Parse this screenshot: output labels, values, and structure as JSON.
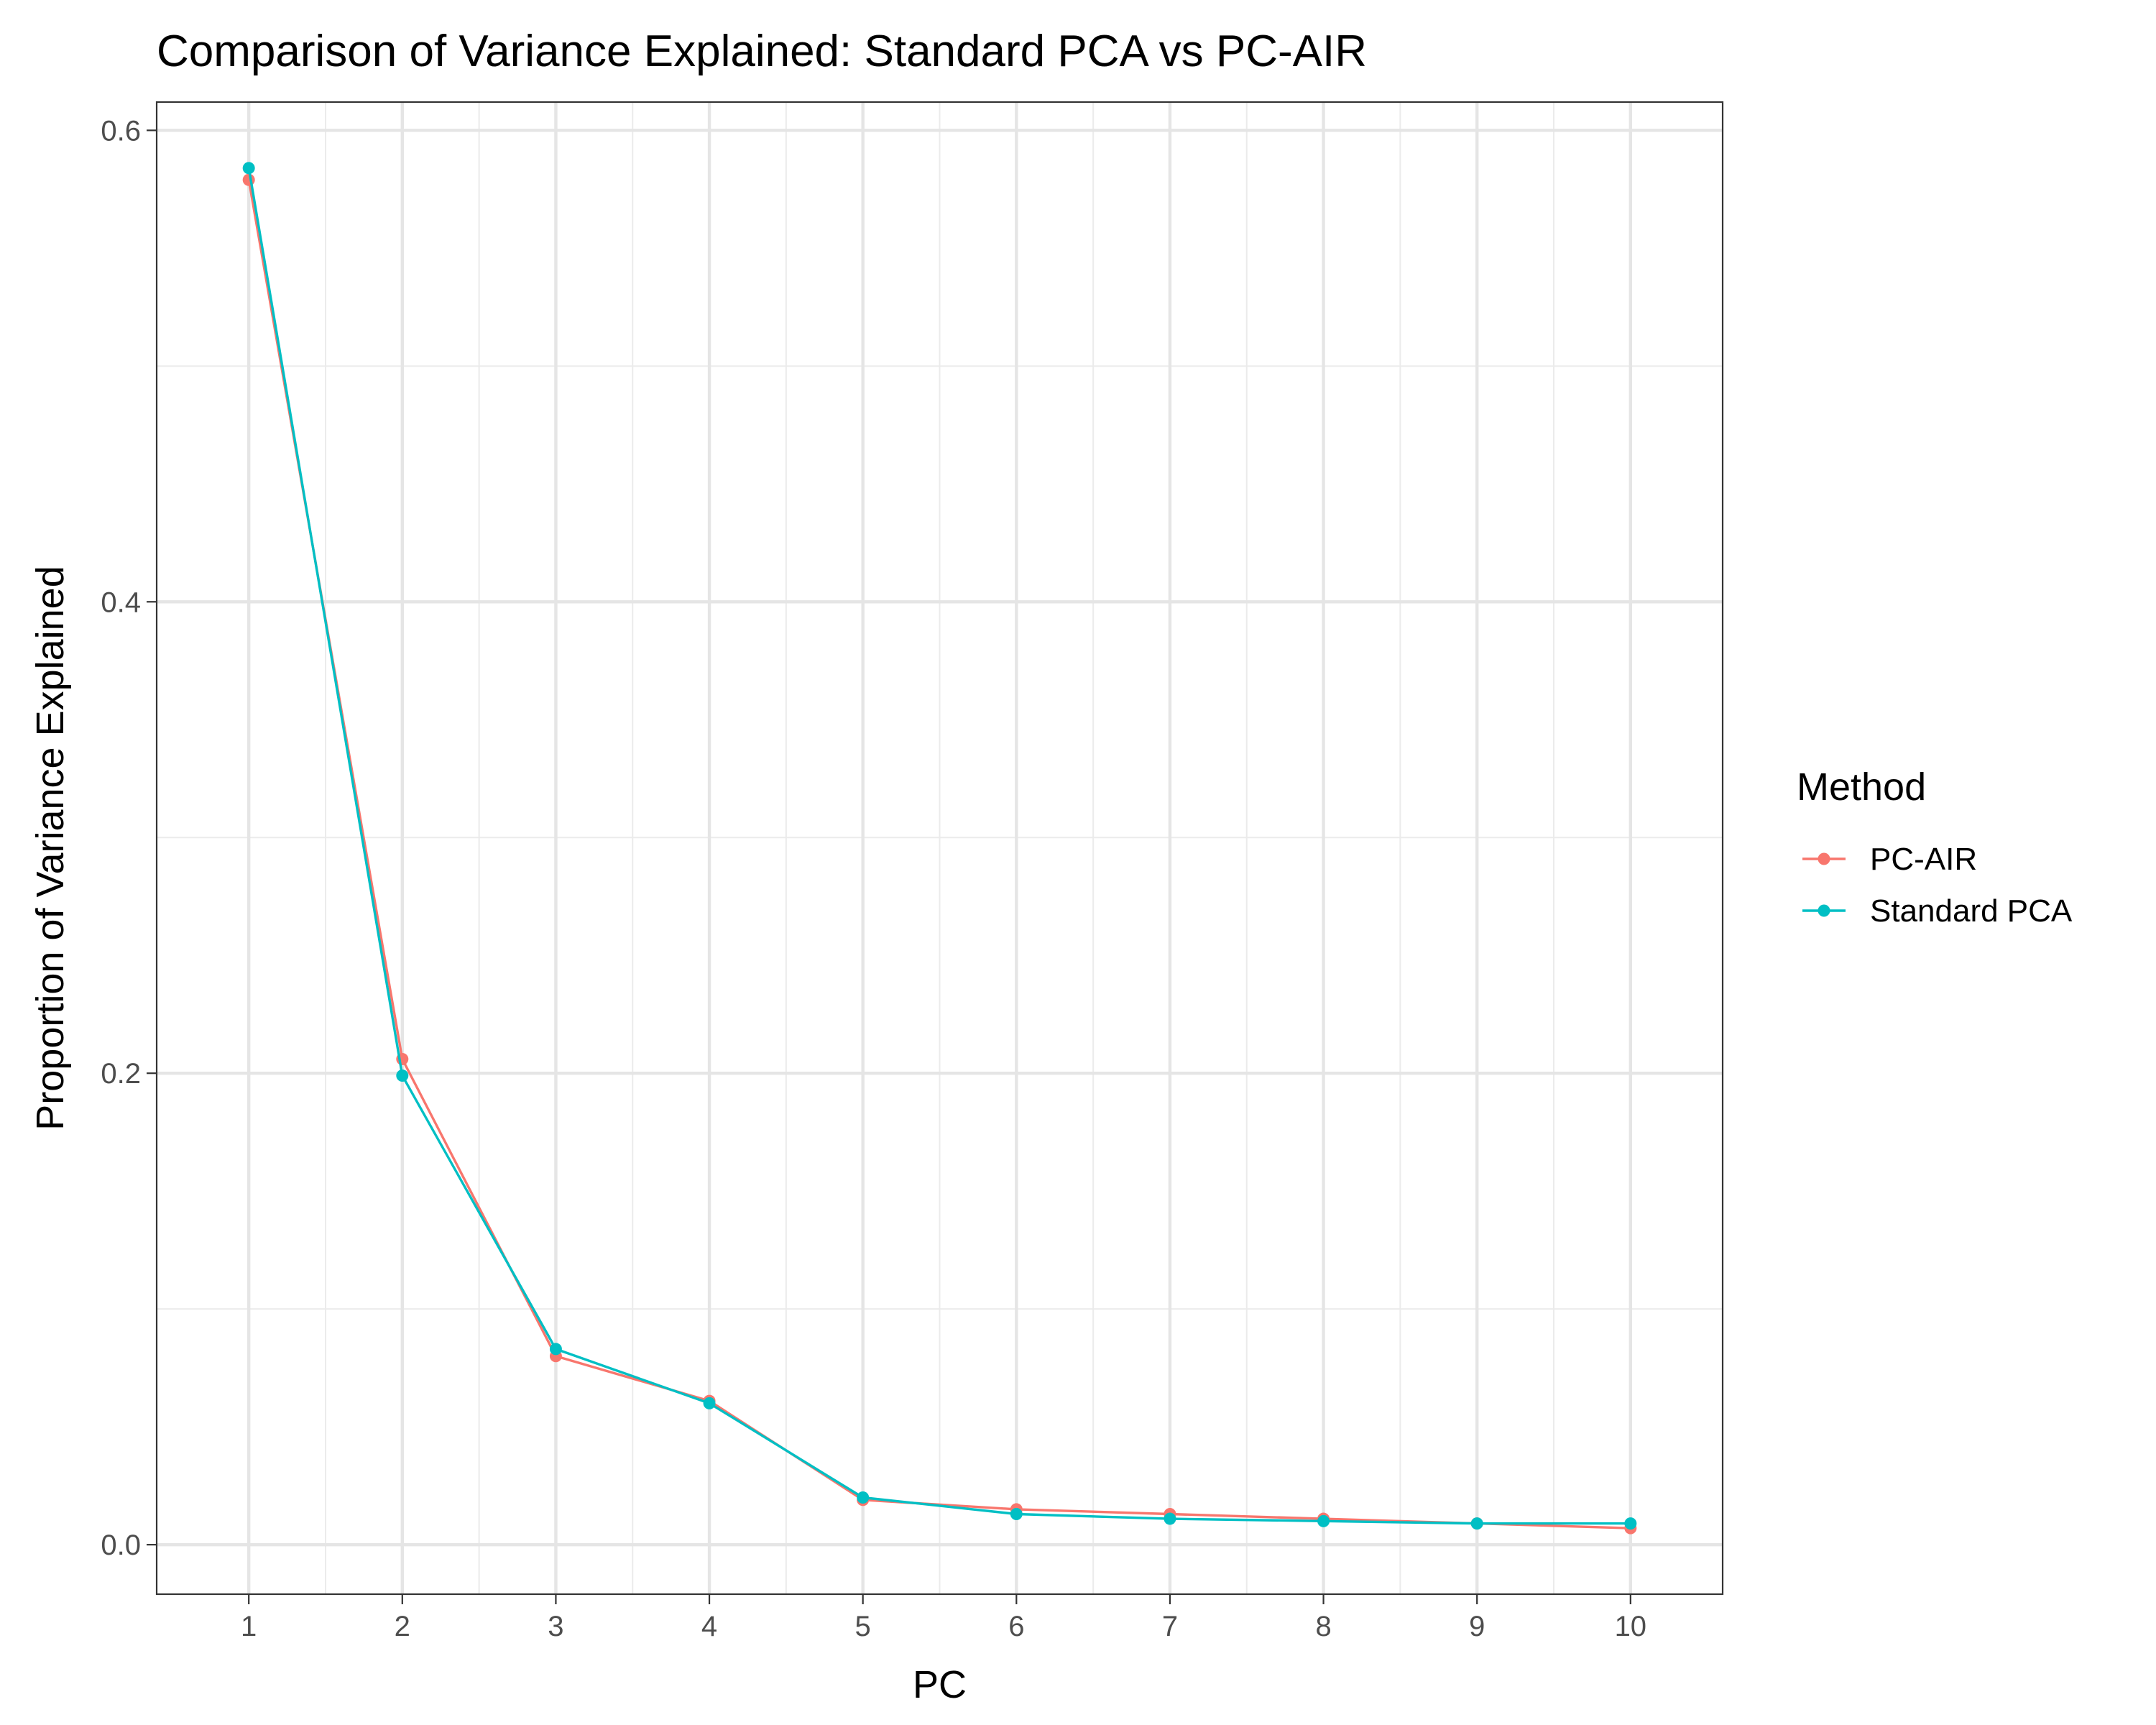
{
  "chart_data": {
    "type": "line",
    "title": "Comparison of Variance Explained: Standard PCA vs PC-AIR",
    "xlabel": "PC",
    "ylabel": "Proportion of Variance Explained",
    "x": [
      1,
      2,
      3,
      4,
      5,
      6,
      7,
      8,
      9,
      10
    ],
    "x_ticks": [
      "1",
      "2",
      "3",
      "4",
      "5",
      "6",
      "7",
      "8",
      "9",
      "10"
    ],
    "y_ticks": [
      "0.0",
      "0.2",
      "0.4",
      "0.6"
    ],
    "y_tick_values": [
      0.0,
      0.2,
      0.4,
      0.6
    ],
    "xlim": [
      0.4,
      10.6
    ],
    "ylim": [
      -0.021,
      0.612
    ],
    "grid": true,
    "legend": {
      "title": "Method",
      "position": "right"
    },
    "series": [
      {
        "name": "PC-AIR",
        "color": "#F8766D",
        "values": [
          0.579,
          0.206,
          0.08,
          0.061,
          0.019,
          0.015,
          0.013,
          0.011,
          0.009,
          0.007
        ]
      },
      {
        "name": "Standard PCA",
        "color": "#00BFC4",
        "values": [
          0.584,
          0.199,
          0.083,
          0.06,
          0.02,
          0.013,
          0.011,
          0.01,
          0.009,
          0.009
        ]
      }
    ]
  }
}
